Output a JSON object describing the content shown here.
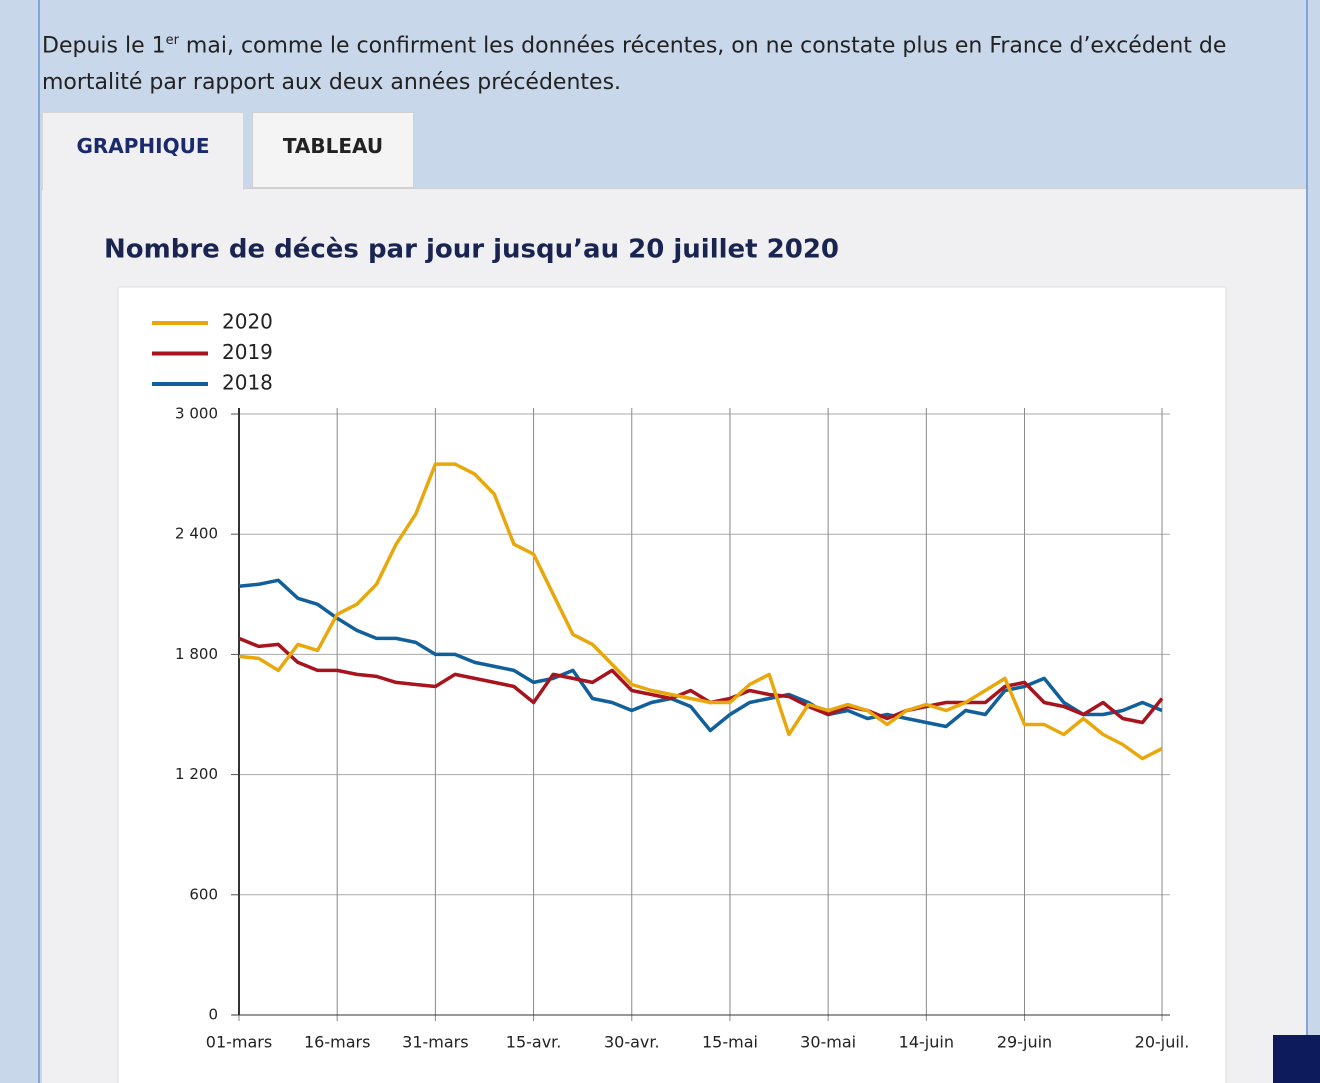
{
  "intro": [
    "Depuis le 1",
    "er",
    " mai, comme le confirment les données récentes, on ne constate plus en France d’excédent de mortalité par rapport aux deux années précédentes."
  ],
  "tabs": [
    "GRAPHIQUE",
    "TABLEAU"
  ],
  "chart_data": {
    "type": "line",
    "title": "Nombre de décès par jour jusqu’au 20 juillet 2020",
    "categories": [
      "01-mars",
      null,
      null,
      null,
      null,
      "16-mars",
      null,
      null,
      null,
      null,
      "31-mars",
      null,
      null,
      null,
      null,
      "15-avr.",
      null,
      null,
      null,
      null,
      "30-avr.",
      null,
      null,
      null,
      null,
      "15-mai",
      null,
      null,
      null,
      null,
      "30-mai",
      null,
      null,
      null,
      null,
      "14-juin",
      null,
      null,
      null,
      null,
      "29-juin",
      null,
      null,
      null,
      null,
      null,
      null,
      "20-juil."
    ],
    "series": [
      {
        "name": "2020",
        "color": "#e8a80c",
        "values": [
          1790,
          1780,
          1720,
          1850,
          1820,
          2000,
          2050,
          2150,
          2350,
          2500,
          2750,
          2750,
          2700,
          2600,
          2350,
          2300,
          2100,
          1900,
          1850,
          1750,
          1650,
          1620,
          1600,
          1580,
          1560,
          1560,
          1650,
          1700,
          1400,
          1550,
          1520,
          1550,
          1520,
          1450,
          1520,
          1550,
          1520,
          1560,
          1620,
          1680,
          1450,
          1450,
          1400,
          1480,
          1400,
          1350,
          1280,
          1330
        ]
      },
      {
        "name": "2019",
        "color": "#a8141e",
        "values": [
          1880,
          1840,
          1850,
          1760,
          1720,
          1720,
          1700,
          1690,
          1660,
          1650,
          1640,
          1700,
          1680,
          1660,
          1640,
          1560,
          1700,
          1680,
          1660,
          1720,
          1620,
          1600,
          1580,
          1620,
          1560,
          1580,
          1620,
          1600,
          1590,
          1540,
          1500,
          1540,
          1520,
          1480,
          1520,
          1540,
          1560,
          1560,
          1560,
          1640,
          1660,
          1560,
          1540,
          1500,
          1560,
          1480,
          1460,
          1580
        ]
      },
      {
        "name": "2018",
        "color": "#11609c",
        "values": [
          2140,
          2150,
          2170,
          2080,
          2050,
          1980,
          1920,
          1880,
          1880,
          1860,
          1800,
          1800,
          1760,
          1740,
          1720,
          1660,
          1680,
          1720,
          1580,
          1560,
          1520,
          1560,
          1580,
          1540,
          1420,
          1500,
          1560,
          1580,
          1600,
          1560,
          1500,
          1520,
          1480,
          1500,
          1480,
          1460,
          1440,
          1520,
          1500,
          1620,
          1640,
          1680,
          1560,
          1500,
          1500,
          1520,
          1560,
          1520
        ]
      }
    ],
    "ylim": [
      0,
      3000
    ],
    "yticks": [
      0,
      600,
      {
        "value": 1200,
        "label": "1 200"
      },
      {
        "value": 1800,
        "label": "1 800"
      },
      {
        "value": 2400,
        "label": "2 400"
      },
      {
        "value": 3000,
        "label": "3 000"
      }
    ],
    "grid": true,
    "legend": "top-left"
  }
}
